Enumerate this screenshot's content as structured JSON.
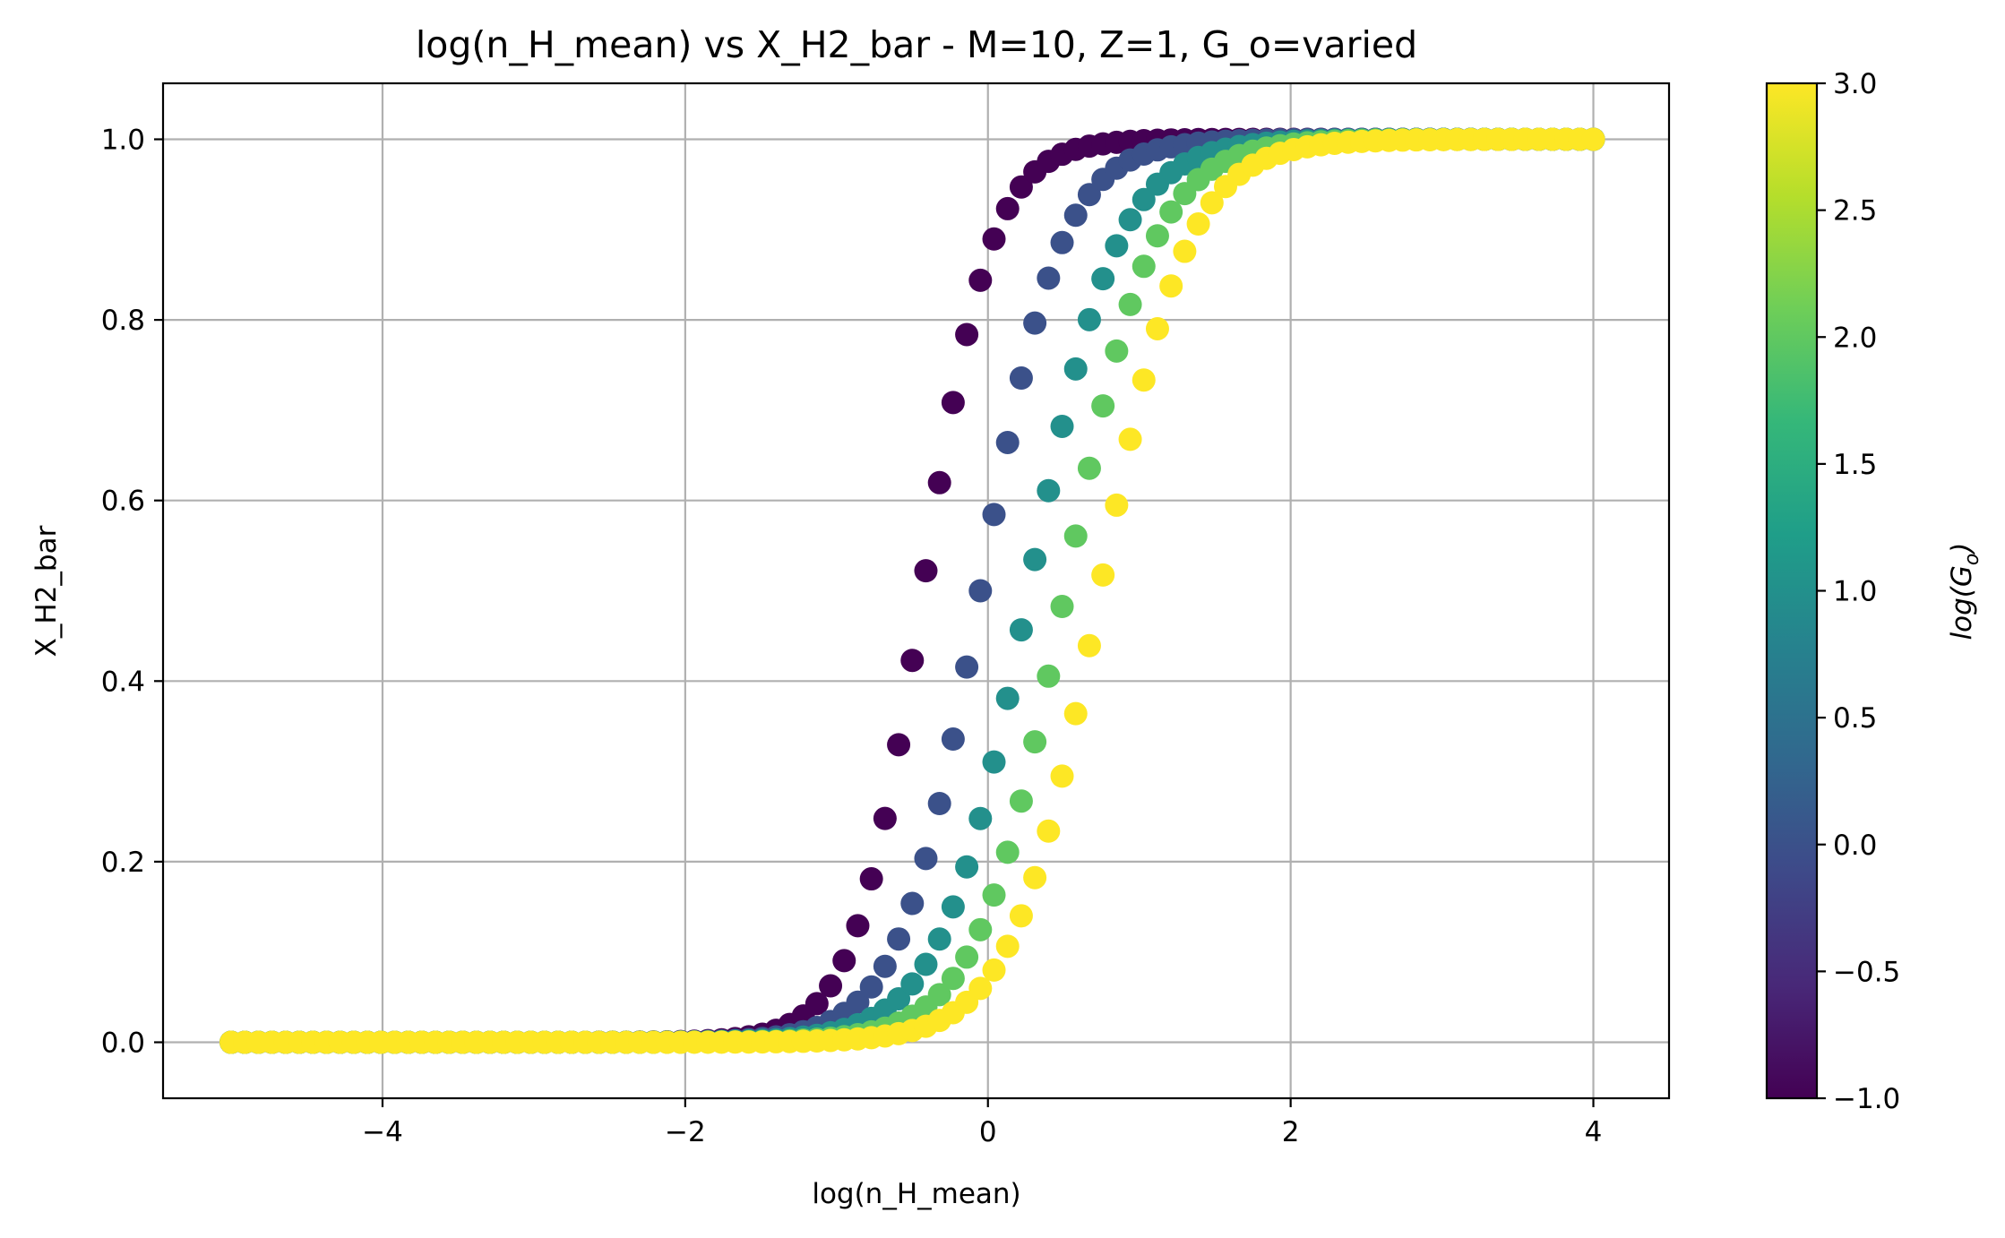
{
  "chart_data": {
    "type": "scatter",
    "title": "log(n_H_mean) vs X_H2_bar - M=10, Z=1, G_o=varied",
    "xlabel": "log(n_H_mean)",
    "ylabel": "X_H2_bar",
    "xlim": [
      -5.45,
      4.5
    ],
    "ylim": [
      -0.062,
      1.062
    ],
    "xticks": [
      -4,
      -2,
      0,
      2,
      4
    ],
    "xtick_labels": [
      "−4",
      "−2",
      "0",
      "2",
      "4"
    ],
    "yticks": [
      0.0,
      0.2,
      0.4,
      0.6,
      0.8,
      1.0
    ],
    "ytick_labels": [
      "0.0",
      "0.2",
      "0.4",
      "0.6",
      "0.8",
      "1.0"
    ],
    "grid": true,
    "colormap": "viridis",
    "colorbar": {
      "label": "log(G_o)",
      "label_base": "log(G",
      "label_sub": "o",
      "label_close": ")",
      "range": [
        -1.0,
        3.0
      ],
      "ticks": [
        -1.0,
        -0.5,
        0.0,
        0.5,
        1.0,
        1.5,
        2.0,
        2.5,
        3.0
      ],
      "tick_labels": [
        "−1.0",
        "−0.5",
        "0.0",
        "0.5",
        "1.0",
        "1.5",
        "2.0",
        "2.5",
        "3.0"
      ]
    },
    "x_range": [
      -5.0,
      4.0
    ],
    "points_per_series": 101,
    "series": [
      {
        "log_Go": -1.0,
        "midpoint": -0.43,
        "slope": 4.44
      },
      {
        "log_Go": 0.0,
        "midpoint": -0.05,
        "slope": 3.79
      },
      {
        "log_Go": 1.0,
        "midpoint": 0.27,
        "slope": 3.47
      },
      {
        "log_Go": 2.0,
        "midpoint": 0.51,
        "slope": 3.48
      },
      {
        "log_Go": 3.0,
        "midpoint": 0.74,
        "slope": 3.49
      }
    ],
    "colors": {
      "viridis_stops": [
        "#440154",
        "#482878",
        "#3e4989",
        "#31688e",
        "#26828e",
        "#1f9e89",
        "#35b779",
        "#6ece58",
        "#b5de2b",
        "#fde725"
      ]
    }
  }
}
